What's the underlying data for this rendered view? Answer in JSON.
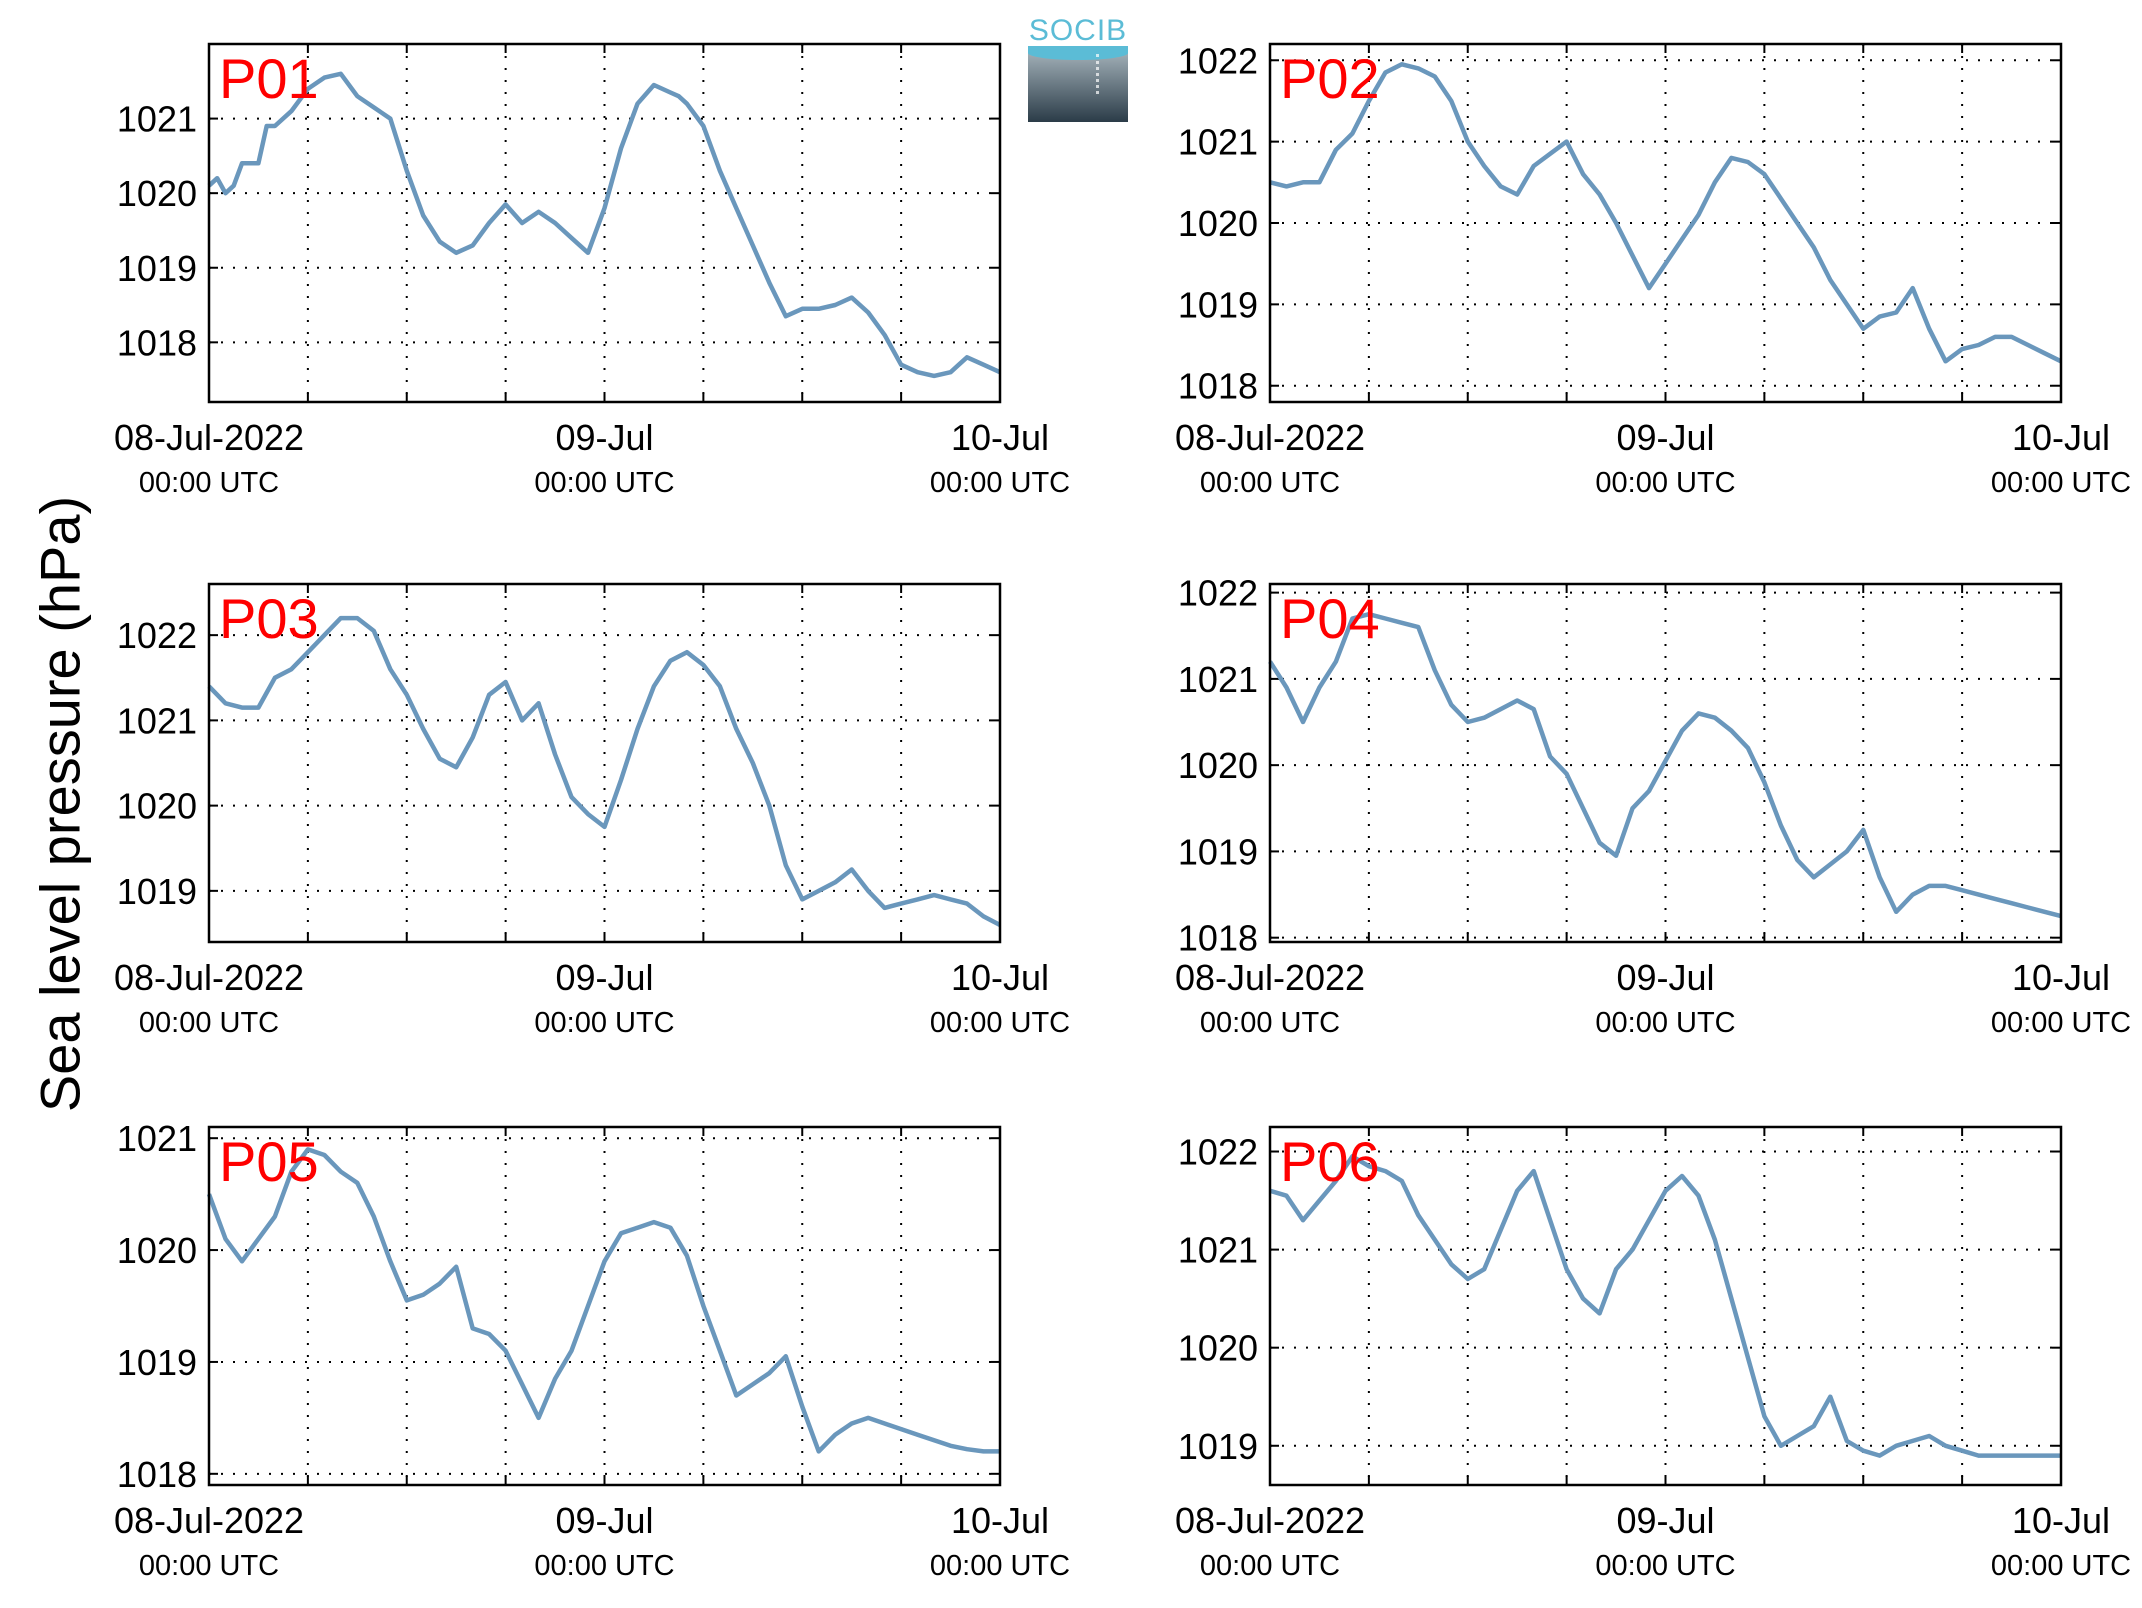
{
  "figure": {
    "ylabel": "Sea level pressure (hPa)",
    "logo_text": "SOCIB",
    "line_color": "#6a97bc",
    "panel_label_color": "#ff0000",
    "x_tick_labels": [
      {
        "top": "08-Jul-2022",
        "bottom": "00:00 UTC"
      },
      {
        "top": "09-Jul",
        "bottom": "00:00 UTC"
      },
      {
        "top": "10-Jul",
        "bottom": "00:00 UTC"
      }
    ]
  },
  "chart_data": [
    {
      "type": "line",
      "title": "P01",
      "xlim": [
        0,
        48
      ],
      "ylim": [
        1017.2,
        1022.0
      ],
      "yticks": [
        1018,
        1019,
        1020,
        1021
      ],
      "grid": true,
      "series": [
        {
          "x": [
            0,
            0.5,
            1,
            1.5,
            2,
            3,
            3.5,
            4,
            5,
            6,
            7,
            8,
            9,
            10,
            11,
            12,
            13,
            14,
            15,
            16,
            17,
            18,
            19,
            20,
            21,
            22,
            23,
            24,
            25,
            26,
            27,
            28,
            28.5,
            29,
            30,
            31,
            32,
            33,
            34,
            35,
            36,
            37,
            38,
            39,
            40,
            41,
            42,
            43,
            44,
            45,
            45.5,
            46,
            47,
            48
          ],
          "y": [
            1020.1,
            1020.2,
            1020.0,
            1020.1,
            1020.4,
            1020.4,
            1020.9,
            1020.9,
            1021.1,
            1021.4,
            1021.55,
            1021.6,
            1021.3,
            1021.15,
            1021.0,
            1020.3,
            1019.7,
            1019.35,
            1019.2,
            1019.3,
            1019.6,
            1019.85,
            1019.6,
            1019.75,
            1019.6,
            1019.4,
            1019.2,
            1019.8,
            1020.6,
            1021.2,
            1021.45,
            1021.35,
            1021.3,
            1021.2,
            1020.9,
            1020.3,
            1019.8,
            1019.3,
            1018.8,
            1018.35,
            1018.45,
            1018.45,
            1018.5,
            1018.6,
            1018.4,
            1018.1,
            1017.7,
            1017.6,
            1017.55,
            1017.6,
            1017.7,
            1017.8,
            1017.7,
            1017.6
          ]
        }
      ]
    },
    {
      "type": "line",
      "title": "P02",
      "xlim": [
        0,
        48
      ],
      "ylim": [
        1017.8,
        1022.2
      ],
      "yticks": [
        1018,
        1019,
        1020,
        1021,
        1022
      ],
      "grid": true,
      "series": [
        {
          "x": [
            0,
            1,
            2,
            3,
            4,
            5,
            6,
            7,
            8,
            9,
            10,
            11,
            12,
            13,
            14,
            15,
            16,
            17,
            18,
            19,
            20,
            21,
            22,
            23,
            24,
            25,
            26,
            27,
            28,
            29,
            30,
            31,
            32,
            33,
            34,
            35,
            36,
            37,
            38,
            39,
            40,
            41,
            42,
            43,
            44,
            45,
            46,
            47,
            48
          ],
          "y": [
            1020.5,
            1020.45,
            1020.5,
            1020.5,
            1020.9,
            1021.1,
            1021.5,
            1021.85,
            1021.95,
            1021.9,
            1021.8,
            1021.5,
            1021.0,
            1020.7,
            1020.45,
            1020.35,
            1020.7,
            1020.85,
            1021.0,
            1020.6,
            1020.35,
            1020.0,
            1019.6,
            1019.2,
            1019.5,
            1019.8,
            1020.1,
            1020.5,
            1020.8,
            1020.75,
            1020.6,
            1020.3,
            1020.0,
            1019.7,
            1019.3,
            1019.0,
            1018.7,
            1018.85,
            1018.9,
            1019.2,
            1018.7,
            1018.3,
            1018.45,
            1018.5,
            1018.6,
            1018.6,
            1018.5,
            1018.4,
            1018.3
          ]
        }
      ]
    },
    {
      "type": "line",
      "title": "P03",
      "xlim": [
        0,
        48
      ],
      "ylim": [
        1018.4,
        1022.6
      ],
      "yticks": [
        1019,
        1020,
        1021,
        1022
      ],
      "grid": true,
      "series": [
        {
          "x": [
            0,
            1,
            2,
            3,
            4,
            5,
            6,
            7,
            8,
            9,
            10,
            11,
            12,
            13,
            14,
            15,
            16,
            17,
            18,
            19,
            20,
            21,
            22,
            23,
            24,
            25,
            26,
            27,
            28,
            29,
            30,
            31,
            32,
            33,
            34,
            35,
            36,
            37,
            38,
            39,
            40,
            41,
            42,
            43,
            44,
            45,
            46,
            47,
            48
          ],
          "y": [
            1021.4,
            1021.2,
            1021.15,
            1021.15,
            1021.5,
            1021.6,
            1021.8,
            1022.0,
            1022.2,
            1022.2,
            1022.05,
            1021.6,
            1021.3,
            1020.9,
            1020.55,
            1020.45,
            1020.8,
            1021.3,
            1021.45,
            1021.0,
            1021.2,
            1020.6,
            1020.1,
            1019.9,
            1019.75,
            1020.3,
            1020.9,
            1021.4,
            1021.7,
            1021.8,
            1021.65,
            1021.4,
            1020.9,
            1020.5,
            1020.0,
            1019.3,
            1018.9,
            1019.0,
            1019.1,
            1019.25,
            1019.0,
            1018.8,
            1018.85,
            1018.9,
            1018.95,
            1018.9,
            1018.85,
            1018.7,
            1018.6
          ]
        }
      ]
    },
    {
      "type": "line",
      "title": "P04",
      "xlim": [
        0,
        48
      ],
      "ylim": [
        1017.95,
        1022.1
      ],
      "yticks": [
        1018,
        1019,
        1020,
        1021,
        1022
      ],
      "grid": true,
      "series": [
        {
          "x": [
            0,
            1,
            2,
            3,
            4,
            5,
            6,
            7,
            8,
            9,
            10,
            11,
            12,
            13,
            14,
            15,
            16,
            17,
            18,
            19,
            20,
            21,
            22,
            23,
            24,
            25,
            26,
            27,
            28,
            29,
            30,
            31,
            32,
            33,
            34,
            35,
            36,
            37,
            38,
            39,
            40,
            41,
            42,
            43,
            44,
            45,
            46,
            47,
            48
          ],
          "y": [
            1021.2,
            1020.9,
            1020.5,
            1020.9,
            1021.2,
            1021.7,
            1021.75,
            1021.7,
            1021.65,
            1021.6,
            1021.1,
            1020.7,
            1020.5,
            1020.55,
            1020.65,
            1020.75,
            1020.65,
            1020.1,
            1019.9,
            1019.5,
            1019.1,
            1018.95,
            1019.5,
            1019.7,
            1020.05,
            1020.4,
            1020.6,
            1020.55,
            1020.4,
            1020.2,
            1019.8,
            1019.3,
            1018.9,
            1018.7,
            1018.85,
            1019.0,
            1019.25,
            1018.7,
            1018.3,
            1018.5,
            1018.6,
            1018.6,
            1018.55,
            1018.5,
            1018.45,
            1018.4,
            1018.35,
            1018.3,
            1018.25
          ]
        }
      ]
    },
    {
      "type": "line",
      "title": "P05",
      "xlim": [
        0,
        48
      ],
      "ylim": [
        1017.9,
        1021.1
      ],
      "yticks": [
        1018,
        1019,
        1020,
        1021
      ],
      "grid": true,
      "series": [
        {
          "x": [
            0,
            1,
            2,
            3,
            4,
            5,
            6,
            7,
            8,
            9,
            10,
            11,
            12,
            13,
            14,
            15,
            16,
            17,
            18,
            19,
            20,
            21,
            22,
            23,
            24,
            25,
            26,
            27,
            28,
            29,
            30,
            31,
            32,
            33,
            34,
            35,
            36,
            37,
            38,
            39,
            40,
            41,
            42,
            43,
            44,
            45,
            46,
            47,
            48
          ],
          "y": [
            1020.5,
            1020.1,
            1019.9,
            1020.1,
            1020.3,
            1020.7,
            1020.9,
            1020.85,
            1020.7,
            1020.6,
            1020.3,
            1019.9,
            1019.55,
            1019.6,
            1019.7,
            1019.85,
            1019.3,
            1019.25,
            1019.1,
            1018.8,
            1018.5,
            1018.85,
            1019.1,
            1019.5,
            1019.9,
            1020.15,
            1020.2,
            1020.25,
            1020.2,
            1019.95,
            1019.5,
            1019.1,
            1018.7,
            1018.8,
            1018.9,
            1019.05,
            1018.6,
            1018.2,
            1018.35,
            1018.45,
            1018.5,
            1018.45,
            1018.4,
            1018.35,
            1018.3,
            1018.25,
            1018.22,
            1018.2,
            1018.2
          ]
        }
      ]
    },
    {
      "type": "line",
      "title": "P06",
      "xlim": [
        0,
        48
      ],
      "ylim": [
        1018.6,
        1022.25
      ],
      "yticks": [
        1019,
        1020,
        1021,
        1022
      ],
      "grid": true,
      "series": [
        {
          "x": [
            0,
            1,
            2,
            3,
            4,
            5,
            6,
            7,
            8,
            9,
            10,
            11,
            12,
            13,
            14,
            15,
            16,
            17,
            18,
            19,
            20,
            21,
            22,
            23,
            24,
            25,
            26,
            27,
            28,
            29,
            30,
            31,
            32,
            33,
            34,
            35,
            36,
            37,
            38,
            39,
            40,
            41,
            42,
            43,
            44,
            45,
            46,
            47,
            48
          ],
          "y": [
            1021.6,
            1021.55,
            1021.3,
            1021.5,
            1021.7,
            1021.95,
            1021.85,
            1021.8,
            1021.7,
            1021.35,
            1021.1,
            1020.85,
            1020.7,
            1020.8,
            1021.2,
            1021.6,
            1021.8,
            1021.3,
            1020.8,
            1020.5,
            1020.35,
            1020.8,
            1021.0,
            1021.3,
            1021.6,
            1021.75,
            1021.55,
            1021.1,
            1020.5,
            1019.9,
            1019.3,
            1019.0,
            1019.1,
            1019.2,
            1019.5,
            1019.05,
            1018.95,
            1018.9,
            1019.0,
            1019.05,
            1019.1,
            1019.0,
            1018.95,
            1018.9,
            1018.9,
            1018.9,
            1018.9,
            1018.9,
            1018.9
          ]
        }
      ]
    }
  ]
}
